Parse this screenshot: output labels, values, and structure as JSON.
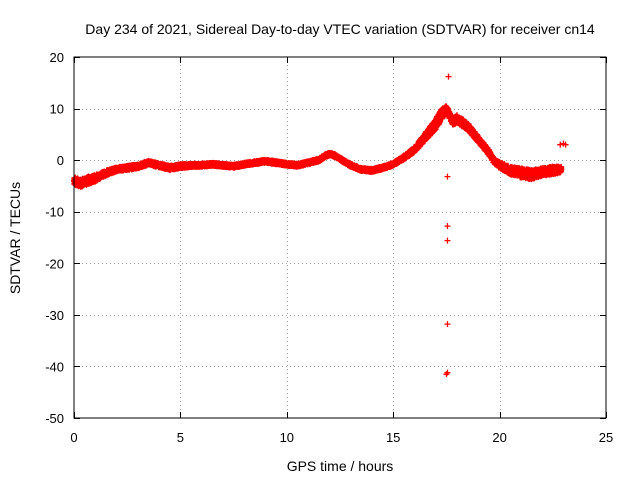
{
  "chart_data": {
    "type": "scatter",
    "title": "Day 234 of 2021, Sidereal Day-to-day VTEC variation (SDTVAR) for receiver cn14",
    "xlabel": "GPS time / hours",
    "ylabel": "SDTVAR / TECUs",
    "xlim": [
      0,
      25
    ],
    "ylim": [
      -50,
      20
    ],
    "xticks": [
      0,
      5,
      10,
      15,
      20,
      25
    ],
    "yticks": [
      -50,
      -40,
      -30,
      -20,
      -10,
      0,
      10,
      20
    ],
    "xtick_labels": [
      "0",
      "5",
      "10",
      "15",
      "20",
      "25"
    ],
    "ytick_labels": [
      "-50",
      "-40",
      "-30",
      "-20",
      "-10",
      "0",
      "10",
      "20"
    ],
    "grid": true,
    "marker": "+",
    "color": "#ff0000",
    "series": [
      {
        "name": "SDTVAR",
        "trend": {
          "x": [
            0.0,
            0.3,
            0.6,
            1.0,
            1.5,
            2.0,
            2.5,
            3.0,
            3.5,
            4.0,
            4.5,
            5.0,
            5.5,
            6.0,
            6.5,
            7.0,
            7.5,
            8.0,
            8.5,
            9.0,
            9.5,
            10.0,
            10.5,
            11.0,
            11.5,
            11.8,
            12.0,
            12.3,
            12.6,
            13.0,
            13.5,
            14.0,
            14.5,
            15.0,
            15.5,
            16.0,
            16.5,
            17.0,
            17.3,
            17.5,
            17.8,
            18.0,
            18.5,
            19.0,
            19.5,
            19.7,
            20.0,
            20.5,
            21.0,
            21.5,
            22.0,
            22.5,
            22.9
          ],
          "y": [
            -4.0,
            -4.5,
            -4.0,
            -3.5,
            -2.5,
            -1.8,
            -1.5,
            -1.2,
            -0.5,
            -1.0,
            -1.5,
            -1.2,
            -1.0,
            -1.0,
            -0.8,
            -1.0,
            -1.2,
            -0.8,
            -0.5,
            -0.2,
            -0.5,
            -0.8,
            -1.0,
            -0.5,
            0.0,
            0.8,
            1.2,
            0.8,
            0.0,
            -1.0,
            -1.8,
            -2.0,
            -1.5,
            -0.8,
            0.5,
            2.0,
            4.5,
            7.0,
            9.0,
            9.8,
            7.5,
            8.0,
            6.5,
            4.0,
            1.5,
            0.0,
            -1.0,
            -2.0,
            -2.5,
            -2.8,
            -2.3,
            -2.0,
            -1.8
          ],
          "spread": [
            1.5,
            1.5,
            1.5,
            1.3,
            1.0,
            0.8,
            0.8,
            0.8,
            0.8,
            0.8,
            0.8,
            0.8,
            0.6,
            0.6,
            0.6,
            0.6,
            0.6,
            0.6,
            0.6,
            0.6,
            0.6,
            0.6,
            0.6,
            0.6,
            0.6,
            0.6,
            0.6,
            0.6,
            0.6,
            0.6,
            0.6,
            0.6,
            0.6,
            0.6,
            0.8,
            1.0,
            1.5,
            2.0,
            2.0,
            1.5,
            1.5,
            1.5,
            1.5,
            1.2,
            1.2,
            1.0,
            1.2,
            1.5,
            1.8,
            1.8,
            1.5,
            1.5,
            1.2
          ]
        },
        "isolated_points": [
          {
            "x": 17.6,
            "y": 16.2
          },
          {
            "x": 17.55,
            "y": -3.2
          },
          {
            "x": 17.55,
            "y": -12.8
          },
          {
            "x": 17.55,
            "y": -15.6
          },
          {
            "x": 17.55,
            "y": -31.8
          },
          {
            "x": 17.55,
            "y": -41.2
          },
          {
            "x": 17.5,
            "y": -41.5
          },
          {
            "x": 23.0,
            "y": 3.2
          },
          {
            "x": 22.85,
            "y": 3.0
          },
          {
            "x": 23.1,
            "y": 3.0
          }
        ]
      }
    ]
  }
}
